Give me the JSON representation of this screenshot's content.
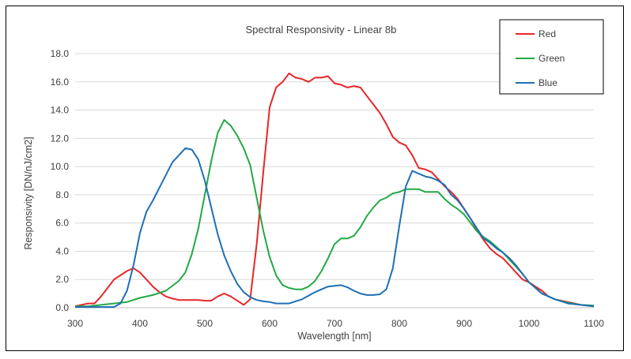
{
  "chart_data": {
    "type": "line",
    "title": "Spectral Responsivity -  Linear 8b",
    "xlabel": "Wavelength [nm]",
    "ylabel": "Responsivity [DN/nJ/cm2]",
    "xlim": [
      300,
      1100
    ],
    "ylim": [
      0,
      18
    ],
    "xticks": [
      300,
      400,
      500,
      600,
      700,
      800,
      900,
      1000,
      1100
    ],
    "yticks": [
      "0.0",
      "2.0",
      "4.0",
      "6.0",
      "8.0",
      "10.0",
      "12.0",
      "14.0",
      "16.0",
      "18.0"
    ],
    "grid": "horizontal",
    "legend_position": "top-right",
    "series": [
      {
        "name": "Red",
        "color": "#e8262a",
        "x": [
          300,
          310,
          320,
          330,
          340,
          350,
          360,
          370,
          380,
          390,
          400,
          410,
          420,
          430,
          440,
          450,
          460,
          470,
          480,
          490,
          500,
          510,
          520,
          530,
          540,
          550,
          560,
          570,
          580,
          590,
          600,
          610,
          620,
          630,
          640,
          650,
          660,
          670,
          680,
          690,
          700,
          710,
          720,
          730,
          740,
          750,
          760,
          770,
          780,
          790,
          800,
          810,
          820,
          830,
          840,
          850,
          860,
          870,
          880,
          890,
          900,
          910,
          920,
          930,
          940,
          950,
          960,
          970,
          980,
          990,
          1000,
          1010,
          1020,
          1030,
          1040,
          1050,
          1060,
          1070,
          1080,
          1090,
          1100
        ],
        "values": [
          0.1,
          0.2,
          0.3,
          0.3,
          0.8,
          1.4,
          2.0,
          2.3,
          2.6,
          2.8,
          2.5,
          2.0,
          1.5,
          1.1,
          0.8,
          0.65,
          0.55,
          0.55,
          0.55,
          0.55,
          0.5,
          0.5,
          0.8,
          1.0,
          0.8,
          0.5,
          0.2,
          0.6,
          4.5,
          9.5,
          14.2,
          15.6,
          16.0,
          16.6,
          16.3,
          16.2,
          16.0,
          16.3,
          16.3,
          16.4,
          15.9,
          15.8,
          15.6,
          15.7,
          15.6,
          15.0,
          14.4,
          13.8,
          13.0,
          12.1,
          11.7,
          11.5,
          10.8,
          9.9,
          9.8,
          9.6,
          9.1,
          8.6,
          8.2,
          7.7,
          7.0,
          6.3,
          5.5,
          4.8,
          4.2,
          3.8,
          3.5,
          3.0,
          2.5,
          2.0,
          1.8,
          1.5,
          1.2,
          0.8,
          0.6,
          0.5,
          0.4,
          0.3,
          0.2,
          0.15,
          0.1
        ]
      },
      {
        "name": "Green",
        "color": "#22a846",
        "x": [
          300,
          320,
          340,
          360,
          380,
          400,
          420,
          440,
          460,
          470,
          480,
          490,
          500,
          510,
          520,
          530,
          540,
          550,
          560,
          570,
          580,
          590,
          600,
          610,
          620,
          630,
          640,
          650,
          660,
          670,
          680,
          690,
          700,
          710,
          720,
          730,
          740,
          750,
          760,
          770,
          780,
          790,
          800,
          810,
          820,
          830,
          840,
          850,
          860,
          870,
          880,
          890,
          900,
          910,
          920,
          930,
          940,
          950,
          960,
          970,
          980,
          990,
          1000,
          1020,
          1040,
          1060,
          1080,
          1100
        ],
        "values": [
          0.1,
          0.1,
          0.2,
          0.3,
          0.4,
          0.7,
          0.9,
          1.2,
          1.9,
          2.5,
          3.8,
          5.6,
          8.0,
          10.4,
          12.4,
          13.3,
          12.9,
          12.2,
          11.3,
          10.1,
          7.8,
          5.5,
          3.6,
          2.3,
          1.6,
          1.4,
          1.3,
          1.3,
          1.5,
          1.9,
          2.6,
          3.5,
          4.5,
          4.9,
          4.9,
          5.1,
          5.7,
          6.5,
          7.1,
          7.6,
          7.8,
          8.1,
          8.2,
          8.4,
          8.4,
          8.4,
          8.2,
          8.2,
          8.2,
          7.7,
          7.3,
          7.0,
          6.6,
          6.0,
          5.4,
          5.0,
          4.7,
          4.3,
          3.9,
          3.4,
          2.9,
          2.4,
          1.8,
          1.0,
          0.6,
          0.35,
          0.2,
          0.15
        ]
      },
      {
        "name": "Blue",
        "color": "#1f6fb4",
        "x": [
          300,
          320,
          340,
          360,
          370,
          380,
          390,
          400,
          410,
          420,
          430,
          440,
          450,
          460,
          470,
          480,
          490,
          500,
          510,
          520,
          530,
          540,
          550,
          560,
          570,
          580,
          590,
          600,
          610,
          620,
          630,
          640,
          650,
          660,
          670,
          680,
          690,
          700,
          710,
          720,
          730,
          740,
          750,
          760,
          770,
          780,
          790,
          800,
          810,
          820,
          830,
          840,
          850,
          860,
          870,
          880,
          890,
          900,
          910,
          920,
          930,
          940,
          950,
          960,
          970,
          980,
          990,
          1000,
          1020,
          1040,
          1060,
          1080,
          1100
        ],
        "values": [
          0.05,
          0.05,
          0.05,
          0.05,
          0.3,
          1.2,
          3.0,
          5.3,
          6.8,
          7.6,
          8.5,
          9.4,
          10.3,
          10.8,
          11.3,
          11.2,
          10.5,
          9.0,
          7.1,
          5.2,
          3.7,
          2.6,
          1.7,
          1.1,
          0.75,
          0.55,
          0.45,
          0.4,
          0.3,
          0.3,
          0.3,
          0.45,
          0.6,
          0.85,
          1.1,
          1.3,
          1.5,
          1.55,
          1.6,
          1.45,
          1.2,
          1.0,
          0.9,
          0.9,
          0.95,
          1.3,
          2.8,
          5.8,
          8.6,
          9.7,
          9.5,
          9.3,
          9.2,
          9.0,
          8.7,
          8.0,
          7.6,
          7.0,
          6.3,
          5.6,
          4.9,
          4.6,
          4.2,
          3.9,
          3.5,
          3.0,
          2.4,
          1.8,
          1.0,
          0.6,
          0.3,
          0.2,
          0.1
        ]
      }
    ]
  }
}
